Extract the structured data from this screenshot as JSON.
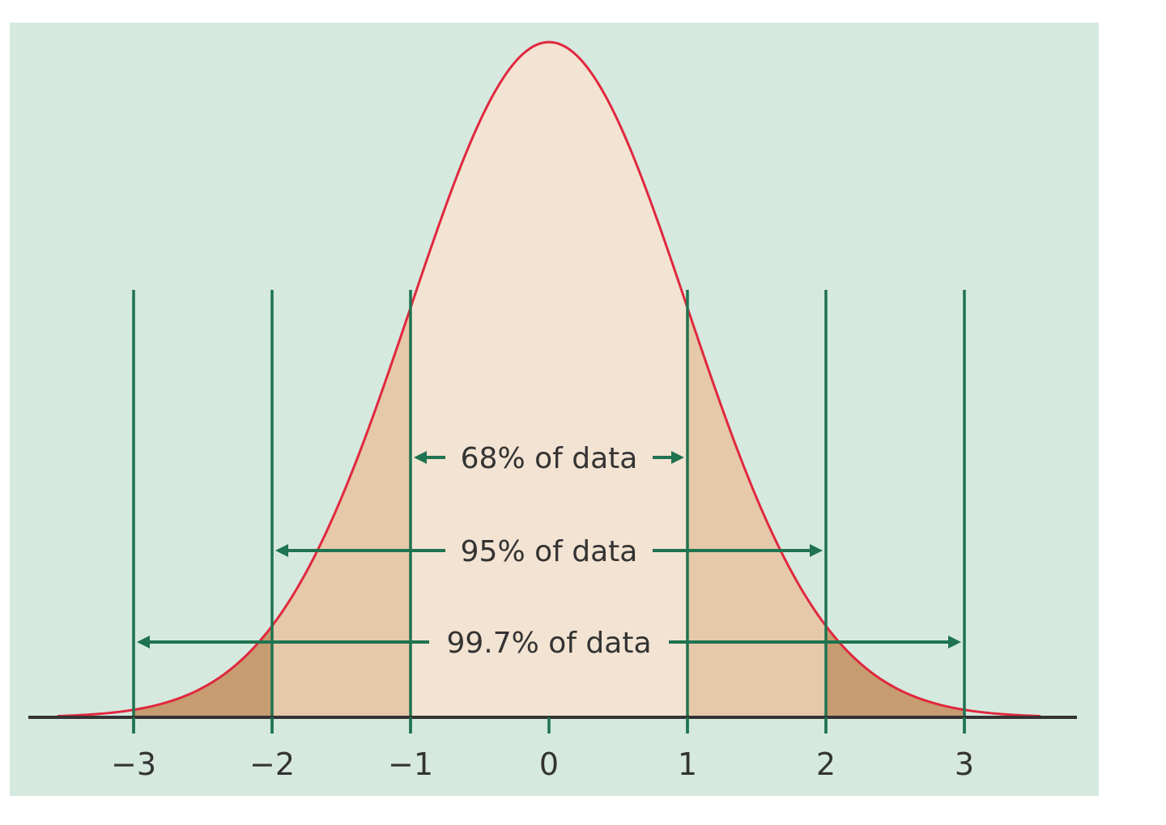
{
  "chart_data": {
    "type": "area",
    "title": "",
    "subtitle": "",
    "xlabel": "",
    "ylabel": "",
    "distribution": "standard normal",
    "mean": 0,
    "sd": 1,
    "x_range": [
      -3.8,
      3.8
    ],
    "x_ticks": [
      -3,
      -2,
      -1,
      0,
      1,
      2,
      3
    ],
    "x_tick_labels": [
      "−3",
      "−2",
      "−1",
      "0",
      "1",
      "2",
      "3"
    ],
    "grid": false,
    "legend": null,
    "shaded_regions": [
      {
        "name": "within 1 SD",
        "from": -1,
        "to": 1,
        "color": "#f3e3d2"
      },
      {
        "name": "between 1 and 2 SD",
        "ranges": [
          [
            -2,
            -1
          ],
          [
            1,
            2
          ]
        ],
        "color": "#e5c9aa"
      },
      {
        "name": "between 2 and 3 SD",
        "ranges": [
          [
            -3,
            -2
          ],
          [
            2,
            3
          ]
        ],
        "color": "#c69c70"
      }
    ],
    "vertical_lines": [
      -3,
      -2,
      -1,
      1,
      2,
      3
    ],
    "annotations": [
      {
        "label": "68% of data",
        "from": -1,
        "to": 1,
        "percent": 68
      },
      {
        "label": "95% of data",
        "from": -2,
        "to": 2,
        "percent": 95
      },
      {
        "label": "99.7% of data",
        "from": -3,
        "to": 3,
        "percent": 99.7
      }
    ]
  },
  "colors": {
    "background": "#d5e9df",
    "curve": "#e0283e",
    "guide_lines": "#1f7350",
    "axis": "#333333",
    "text": "#333333",
    "inner_fill": "#f3e3d2",
    "middle_fill": "#e5c9aa",
    "outer_fill": "#c69c70"
  }
}
